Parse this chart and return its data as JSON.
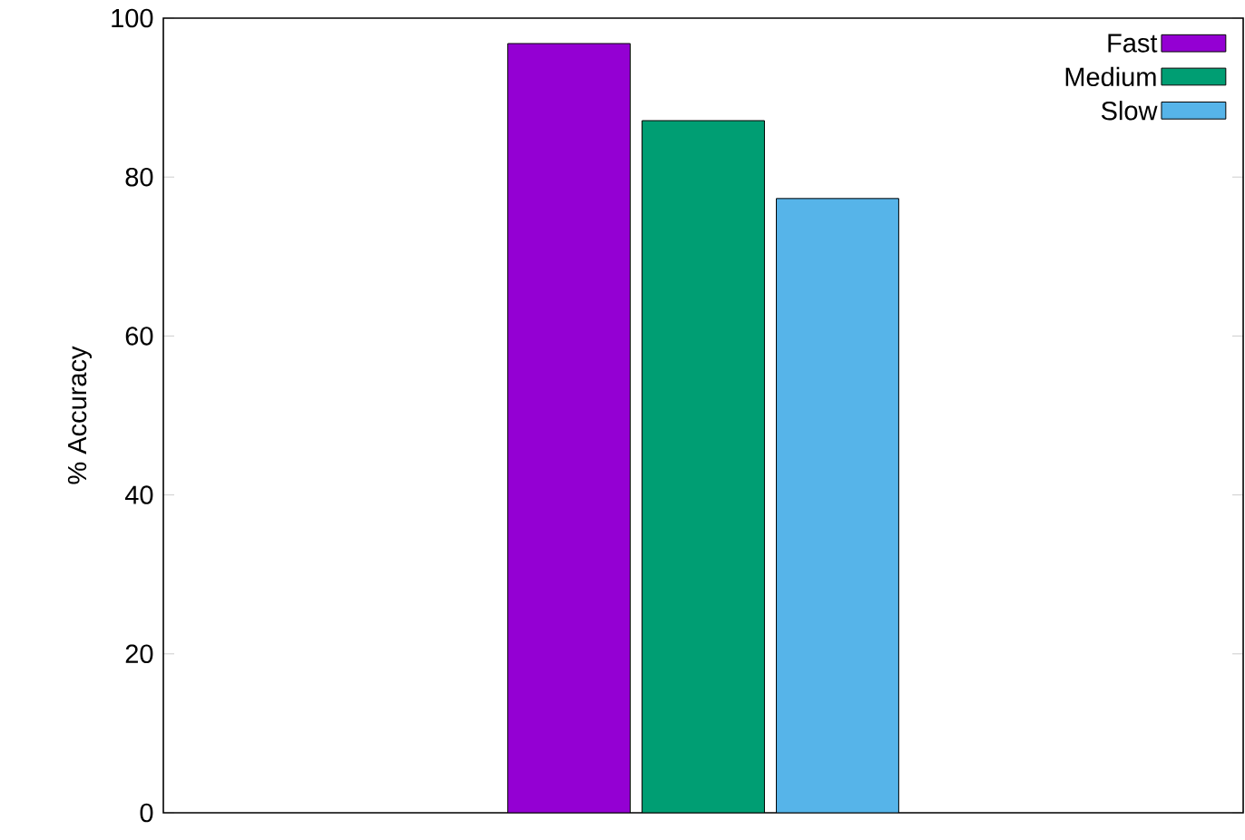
{
  "chart_data": {
    "type": "bar",
    "ylabel": "% Accuracy",
    "categories": [
      null
    ],
    "series": [
      {
        "name": "Fast",
        "color": "#9400d3",
        "values": [
          96.8
        ]
      },
      {
        "name": "Medium",
        "color": "#009e73",
        "values": [
          87.1
        ]
      },
      {
        "name": "Slow",
        "color": "#56b4e9",
        "values": [
          77.3
        ]
      }
    ],
    "ylim": [
      0,
      100
    ],
    "yticks": [
      0,
      20,
      40,
      60,
      80,
      100
    ],
    "legend": "top right"
  }
}
